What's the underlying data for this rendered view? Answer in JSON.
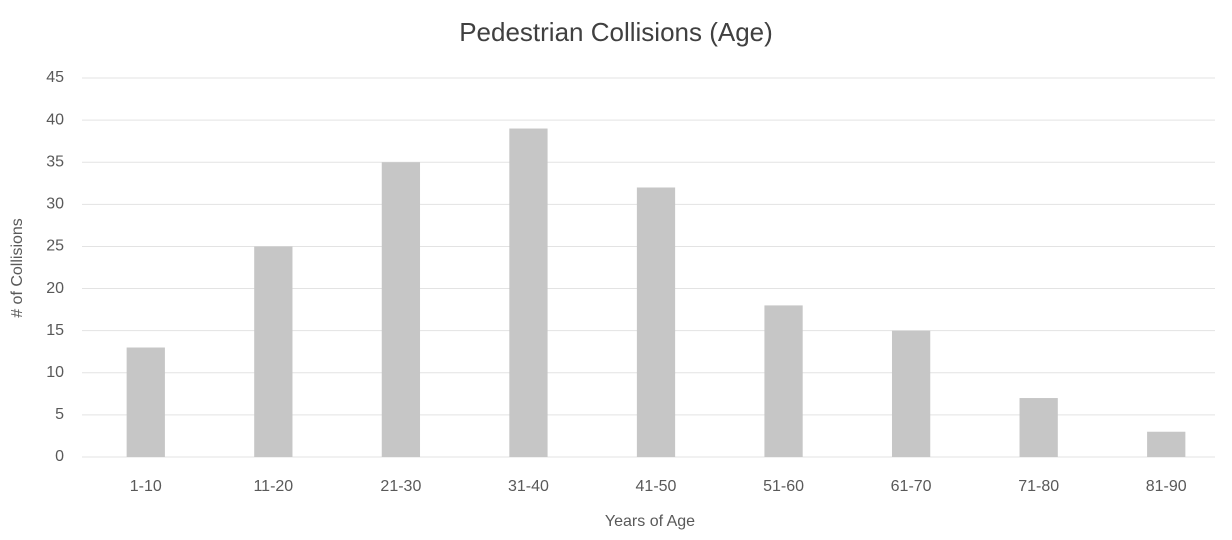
{
  "chart_data": {
    "type": "bar",
    "title": "Pedestrian Collisions (Age)",
    "categories": [
      "1-10",
      "11-20",
      "21-30",
      "31-40",
      "41-50",
      "51-60",
      "61-70",
      "71-80",
      "81-90"
    ],
    "values": [
      13,
      25,
      35,
      39,
      32,
      18,
      15,
      7,
      3
    ],
    "color": "#c6c6c6",
    "x_label": "Years of Age",
    "y_label": "# of Collisions",
    "ylim": [
      0,
      45
    ],
    "yticks": [
      0,
      5,
      10,
      15,
      20,
      25,
      30,
      35,
      40,
      45
    ],
    "grid": true
  }
}
